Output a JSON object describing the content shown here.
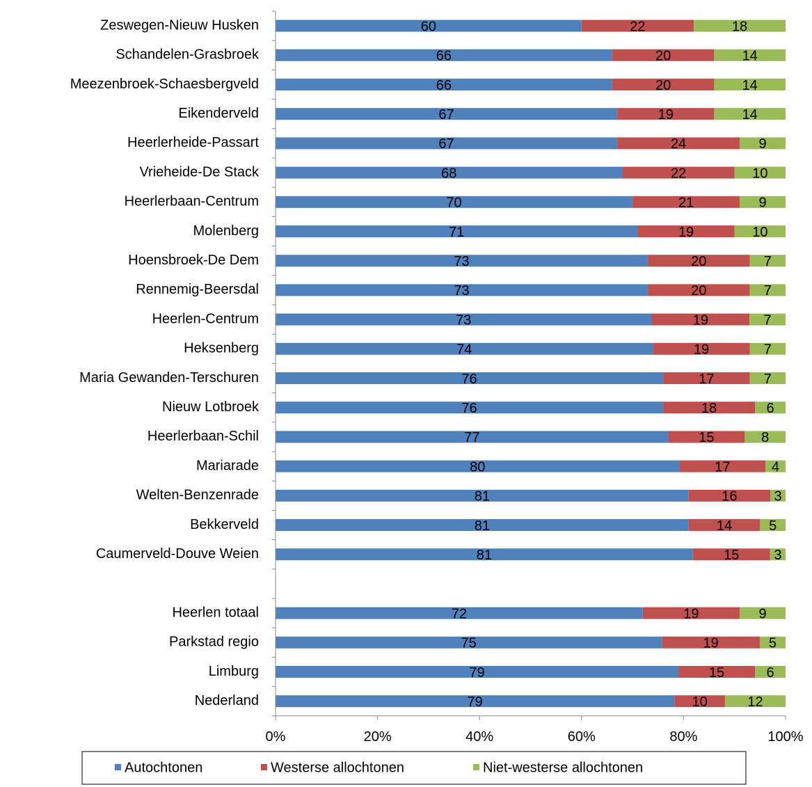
{
  "chart_data": {
    "type": "percent_stacked_bar",
    "categories": [
      "Zeswegen-Nieuw Husken",
      "Schandelen-Grasbroek",
      "Meezenbroek-Schaesbergveld",
      "Eikenderveld",
      "Heerlerheide-Passart",
      "Vrieheide-De Stack",
      "Heerlerbaan-Centrum",
      "Molenberg",
      "Hoensbroek-De Dem",
      "Rennemig-Beersdal",
      "Heerlen-Centrum",
      "Heksenberg",
      "Maria Gewanden-Terschuren",
      "Nieuw Lotbroek",
      "Heerlerbaan-Schil",
      "Mariarade",
      "Welten-Benzenrade",
      "Bekkerveld",
      "Caumerveld-Douve Weien",
      null,
      "Heerlen totaal",
      "Parkstad regio",
      "Limburg",
      "Nederland"
    ],
    "series": [
      {
        "name": "Autochtonen",
        "color": "#4f81bd",
        "values": [
          60,
          66,
          66,
          67,
          67,
          68,
          70,
          71,
          73,
          73,
          73,
          74,
          76,
          76,
          77,
          80,
          81,
          81,
          81,
          null,
          72,
          75,
          79,
          79
        ]
      },
      {
        "name": "Westerse allochtonen",
        "color": "#c0504d",
        "values": [
          22,
          20,
          20,
          19,
          24,
          22,
          21,
          19,
          20,
          20,
          19,
          19,
          17,
          18,
          15,
          17,
          16,
          14,
          15,
          null,
          19,
          19,
          15,
          10
        ]
      },
      {
        "name": "Niet-westerse allochtonen",
        "color": "#9bbb59",
        "values": [
          18,
          14,
          14,
          14,
          9,
          10,
          9,
          10,
          7,
          7,
          7,
          7,
          7,
          6,
          8,
          4,
          3,
          5,
          3,
          null,
          9,
          5,
          6,
          12
        ]
      }
    ],
    "xlim": [
      0,
      100
    ],
    "xticks": [
      {
        "value": 0,
        "label": "0%"
      },
      {
        "value": 20,
        "label": "20%"
      },
      {
        "value": 40,
        "label": "40%"
      },
      {
        "value": 60,
        "label": "60%"
      },
      {
        "value": 80,
        "label": "80%"
      },
      {
        "value": 100,
        "label": "100%"
      }
    ],
    "legend": "bottom"
  }
}
